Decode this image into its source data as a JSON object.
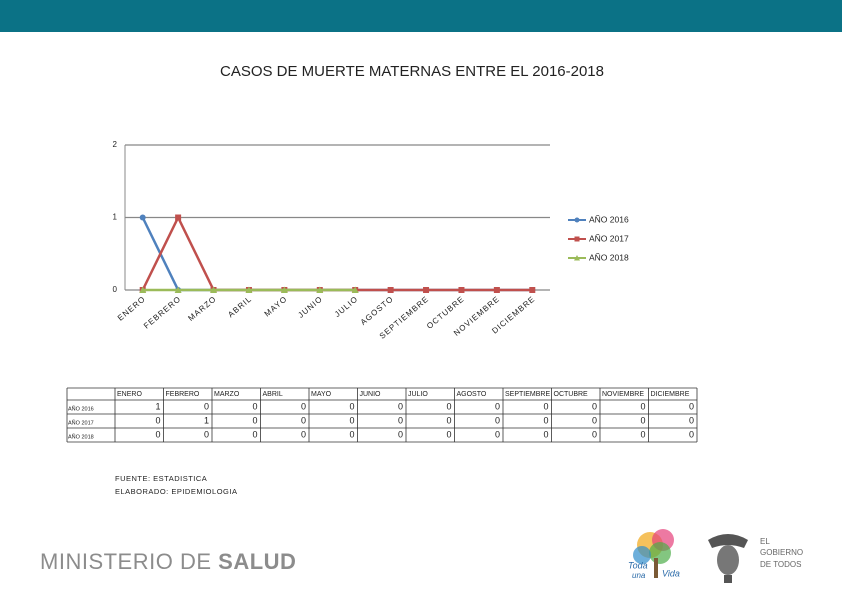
{
  "chart_data": {
    "type": "line",
    "title": "CASOS DE MUERTE MATERNAS ENTRE EL 2016-2018",
    "categories": [
      "ENERO",
      "FEBRERO",
      "MARZO",
      "ABRIL",
      "MAYO",
      "JUNIO",
      "JULIO",
      "AGOSTO",
      "SEPTIEMBRE",
      "OCTUBRE",
      "NOVIEMBRE",
      "DICIEMBRE"
    ],
    "series": [
      {
        "name": "AÑO 2016",
        "color": "#4f81bd",
        "values": [
          1,
          0,
          0,
          0,
          0,
          0,
          0,
          0,
          0,
          0,
          0,
          0
        ]
      },
      {
        "name": "AÑO 2017",
        "color": "#c0504d",
        "values": [
          0,
          1,
          0,
          0,
          0,
          0,
          0,
          0,
          0,
          0,
          0,
          0
        ]
      },
      {
        "name": "AÑO 2018",
        "color": "#9bbb59",
        "values": [
          0,
          0,
          0,
          0,
          0,
          0,
          0,
          null,
          null,
          null,
          null,
          null
        ]
      }
    ],
    "ylim": [
      0,
      2
    ],
    "yticks": [
      0,
      1,
      2
    ],
    "grid": true,
    "legend": "right"
  },
  "table": {
    "header": [
      "ENERO",
      "FEBRERO",
      "MARZO",
      "ABRIL",
      "MAYO",
      "JUNIO",
      "JULIO",
      "AGOSTO",
      "SEPTIEMBRE",
      "OCTUBRE",
      "NOVIEMBRE",
      "DICIEMBRE"
    ],
    "rows": [
      {
        "label": "AÑO 2016",
        "cells": [
          1,
          0,
          0,
          0,
          0,
          0,
          0,
          0,
          0,
          0,
          0,
          0
        ]
      },
      {
        "label": "AÑO 2017",
        "cells": [
          0,
          1,
          0,
          0,
          0,
          0,
          0,
          0,
          0,
          0,
          0,
          0
        ]
      },
      {
        "label": "AÑO 2018",
        "cells": [
          0,
          0,
          0,
          0,
          0,
          0,
          0,
          0,
          0,
          0,
          0,
          0
        ]
      }
    ]
  },
  "footer": {
    "source": "FUENTE: ESTADISTICA",
    "author": "ELABORADO: EPIDEMIOLOGIA"
  },
  "logos": {
    "ministry": "MINISTERIO DE",
    "ministry_bold": "SALUD",
    "tree": [
      "Toda",
      "una",
      "Vida"
    ],
    "gov": [
      "EL",
      "GOBIERNO",
      "DE TODOS"
    ]
  }
}
